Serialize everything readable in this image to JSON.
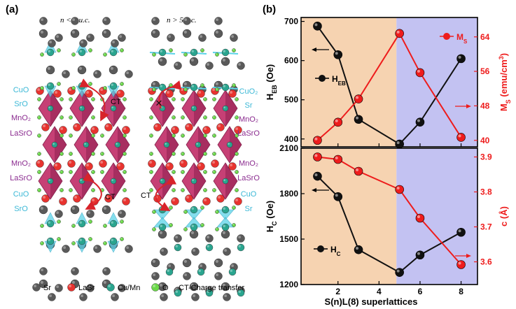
{
  "panel_a": {
    "label": "(a)",
    "left_title": "n < 5 u.c.",
    "right_title": "n > 5 u.c.",
    "left_layers": [
      "CuO",
      "SrO",
      "MnO₂",
      "LaSrO",
      "MnO₂",
      "LaSrO",
      "CuO",
      "SrO"
    ],
    "right_layers": [
      "CuO₂",
      "Sr",
      "MnO₂",
      "LaSrO",
      "MnO₂",
      "LaSrO",
      "CuO",
      "Sr"
    ],
    "ct_label": "CT",
    "block_mark": "✕",
    "legend": [
      {
        "label": "Sr",
        "color": "#5a5a5a"
      },
      {
        "label": "LaSr",
        "color": "#e8332f"
      },
      {
        "label": "Cu/Mn",
        "color": "#2aa58f"
      },
      {
        "label": "O",
        "color": "#6bd84a"
      }
    ],
    "legend_note": "CT-Charge transfer"
  },
  "panel_b": {
    "label": "(b)",
    "xlabel": "S(n)L(8) superlattices",
    "top_left_axis": "H_EB (Oe)",
    "top_right_axis": "M_S (emu/cm³)",
    "bottom_left_axis": "H_C (Oe)",
    "bottom_right_axis": "c (Å)",
    "top_heb_legend": "H_EB",
    "top_ms_legend": "M_S",
    "bottom_hc_legend": "H_C",
    "colors": {
      "black": "#111111",
      "red": "#ee1c1c",
      "orange": "#f6d3b1",
      "blue": "#c3c2f2"
    }
  },
  "chart_data": [
    {
      "type": "line",
      "title": "",
      "xlabel": "S(n)L(8) superlattices",
      "x": [
        1,
        2,
        3,
        5,
        6,
        8
      ],
      "xlim": [
        0.2,
        8.8
      ],
      "xticks": [
        2,
        4,
        6,
        8
      ],
      "shaded_regions": [
        {
          "from": 0.2,
          "to": 4.85,
          "color": "orange"
        },
        {
          "from": 4.85,
          "to": 8.8,
          "color": "blue"
        }
      ],
      "series": [
        {
          "name": "H_EB",
          "axis": "left",
          "color": "black",
          "values": [
            688,
            615,
            450,
            387,
            443,
            605
          ]
        },
        {
          "name": "M_S",
          "axis": "right",
          "color": "red",
          "values": [
            40.0,
            44.2,
            49.6,
            64.8,
            55.7,
            40.7
          ]
        }
      ],
      "ylabel_left": "H_EB (Oe)",
      "ylim_left": [
        380,
        710
      ],
      "yticks_left": [
        400,
        500,
        600,
        700
      ],
      "ylabel_right": "M_S (emu/cm³)",
      "ylim_right": [
        38.5,
        68.5
      ],
      "yticks_right": [
        40,
        48,
        56,
        64
      ]
    },
    {
      "type": "line",
      "title": "",
      "xlabel": "S(n)L(8) superlattices",
      "x": [
        1,
        2,
        3,
        5,
        6,
        8
      ],
      "xlim": [
        0.2,
        8.8
      ],
      "xticks": [
        2,
        4,
        6,
        8
      ],
      "shaded_regions": [
        {
          "from": 0.2,
          "to": 4.85,
          "color": "orange"
        },
        {
          "from": 4.85,
          "to": 8.8,
          "color": "blue"
        }
      ],
      "series": [
        {
          "name": "H_C",
          "axis": "left",
          "color": "black",
          "values": [
            1915,
            1780,
            1430,
            1280,
            1395,
            1545
          ]
        },
        {
          "name": "c",
          "axis": "right",
          "color": "red",
          "values": [
            3.9,
            3.893,
            3.859,
            3.807,
            3.725,
            3.592
          ]
        }
      ],
      "ylabel_left": "H_C (Oe)",
      "ylim_left": [
        1200,
        2100
      ],
      "yticks_left": [
        1200,
        1500,
        1800,
        2100
      ],
      "ylabel_right": "c (Å)",
      "ylim_right": [
        3.535,
        3.925
      ],
      "yticks_right": [
        3.6,
        3.7,
        3.8,
        3.9
      ]
    }
  ]
}
